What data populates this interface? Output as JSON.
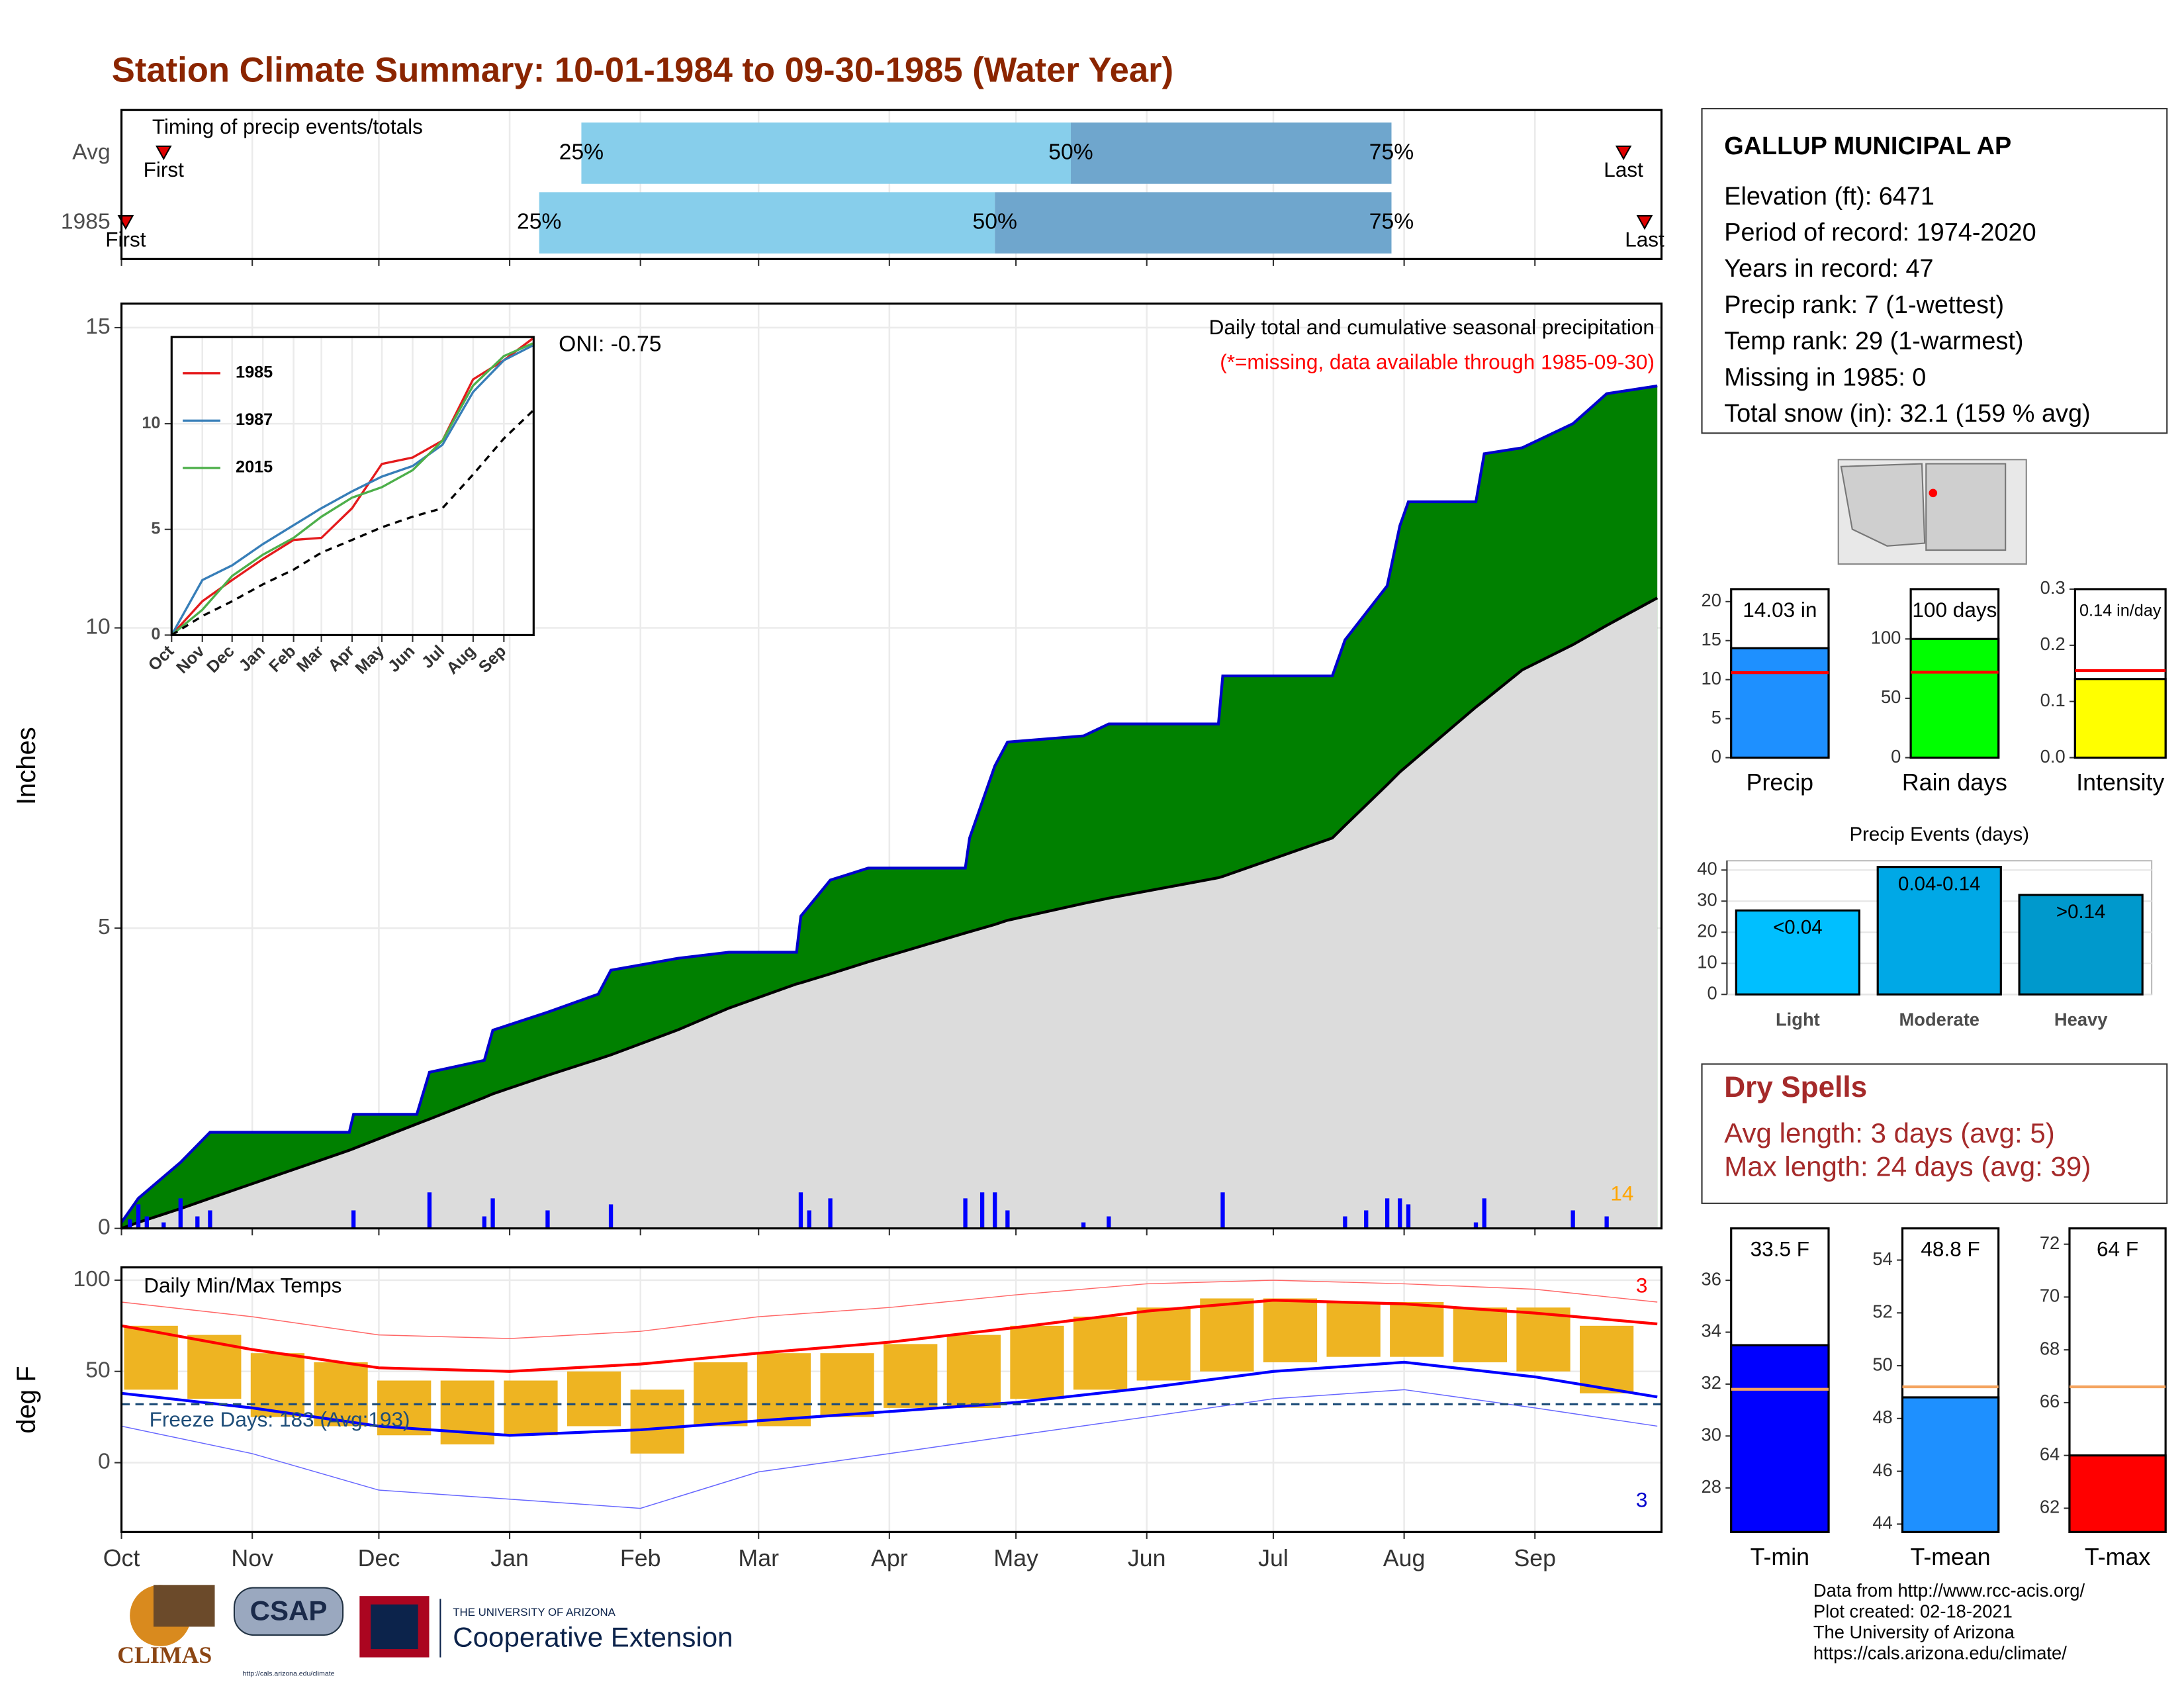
{
  "title": "Station Climate Summary: 10-01-1984 to 09-30-1985 (Water Year)",
  "station": {
    "name": "GALLUP MUNICIPAL AP",
    "lines": [
      "Elevation (ft): 6471",
      "Period of record: 1974-2020",
      "Years in record: 47",
      "Precip rank: 7 (1-wettest)",
      "Temp rank: 29 (1-warmest)",
      "Missing in 1985: 0",
      "Total snow (in): 32.1 (159 % avg)"
    ]
  },
  "dry_spells": {
    "title": "Dry Spells",
    "lines": [
      "Avg length: 3 days (avg: 5)",
      "Max length: 24 days (avg: 39)"
    ]
  },
  "footer": [
    "Data from http://www.rcc-acis.org/",
    "Plot created: 02-18-2021",
    "The University of Arizona",
    "https://cals.arizona.edu/climate/"
  ],
  "logos": {
    "climas": "CLIMAS",
    "csap": "CSAP",
    "csap_url": "http://cals.arizona.edu/climate",
    "university": "THE UNIVERSITY OF ARIZONA",
    "extension": "Cooperative Extension"
  },
  "chart_data": [
    {
      "type": "timing",
      "title": "Timing of precip events/totals",
      "xlim": [
        0,
        365
      ],
      "xticks": [
        0,
        31,
        61,
        92,
        123,
        151,
        182,
        212,
        243,
        273,
        304,
        335
      ],
      "grid": true,
      "quartile_labels": [
        "25%",
        "50%",
        "75%"
      ],
      "first_label": "First",
      "last_label": "Last",
      "colors": [
        "#87ceeb",
        "#6fa6cd"
      ],
      "rows": [
        {
          "name": "Avg",
          "first": 10,
          "last": 356,
          "quartiles": [
            109,
            225,
            301
          ]
        },
        {
          "name": "1985",
          "first": 1,
          "last": 361,
          "quartiles": [
            99,
            207,
            301
          ]
        }
      ]
    },
    {
      "type": "area",
      "subtitle": "Daily total and cumulative seasonal precipitation",
      "note": "(*=missing, data available through 1985-09-30)",
      "annotation": "ONI: -0.75",
      "count_label": "14",
      "y_label": "Inches",
      "xlim": [
        0,
        365
      ],
      "ylim": [
        0,
        15.4
      ],
      "xticks": [
        0,
        31,
        61,
        92,
        123,
        151,
        182,
        212,
        243,
        273,
        304,
        335
      ],
      "yticks": [
        0,
        5,
        10,
        15
      ],
      "grid": true,
      "x": [
        0,
        4,
        14,
        21,
        54,
        55,
        70,
        73,
        86,
        88,
        101,
        113,
        116,
        132,
        144,
        160,
        161,
        168,
        177,
        200,
        201,
        207,
        210,
        228,
        234,
        260,
        261,
        287,
        290,
        300,
        303,
        305,
        321,
        323,
        332,
        344,
        352,
        364
      ],
      "series": [
        {
          "color": "#008000",
          "line_color": "#0000cd",
          "values": [
            0.1,
            0.5,
            1.1,
            1.6,
            1.6,
            1.9,
            1.9,
            2.6,
            2.8,
            3.3,
            3.6,
            3.9,
            4.3,
            4.5,
            4.6,
            4.6,
            5.2,
            5.8,
            6.0,
            6.0,
            6.5,
            7.7,
            8.1,
            8.2,
            8.4,
            8.4,
            9.2,
            9.2,
            9.8,
            10.7,
            11.7,
            12.1,
            12.1,
            12.9,
            13.0,
            13.4,
            13.9,
            14.03
          ]
        },
        {
          "color": "#dcdcdc",
          "line_color": "#000000",
          "values": [
            0,
            0.1,
            0.33,
            0.5,
            1.3,
            1.33,
            1.74,
            1.82,
            2.18,
            2.24,
            2.55,
            2.82,
            2.89,
            3.31,
            3.67,
            4.07,
            4.09,
            4.24,
            4.44,
            4.92,
            4.94,
            5.06,
            5.13,
            5.41,
            5.5,
            5.84,
            5.86,
            6.5,
            6.71,
            7.39,
            7.6,
            7.72,
            8.68,
            8.79,
            9.3,
            9.72,
            10.04,
            10.5
          ]
        }
      ],
      "daily": {
        "color": "#0000ff",
        "x": [
          2,
          4,
          6,
          10,
          14,
          18,
          21,
          55,
          73,
          86,
          88,
          101,
          116,
          161,
          163,
          168,
          200,
          204,
          207,
          210,
          228,
          234,
          261,
          290,
          295,
          300,
          303,
          305,
          321,
          323,
          344,
          352
        ],
        "values": [
          0.15,
          0.4,
          0.2,
          0.1,
          0.5,
          0.2,
          0.3,
          0.3,
          0.6,
          0.2,
          0.5,
          0.3,
          0.4,
          0.6,
          0.3,
          0.5,
          0.5,
          0.6,
          0.6,
          0.3,
          0.1,
          0.2,
          0.6,
          0.2,
          0.3,
          0.5,
          0.5,
          0.4,
          0.1,
          0.5,
          0.3,
          0.2
        ]
      }
    },
    {
      "type": "line",
      "xlim": [
        0,
        365
      ],
      "ylim": [
        0,
        14.1
      ],
      "xticks": [
        {
          "value": 0,
          "label": "Oct"
        },
        {
          "value": 31,
          "label": "Nov"
        },
        {
          "value": 61,
          "label": "Dec"
        },
        {
          "value": 92,
          "label": "Jan"
        },
        {
          "value": 123,
          "label": "Feb"
        },
        {
          "value": 151,
          "label": "Mar"
        },
        {
          "value": 182,
          "label": "Apr"
        },
        {
          "value": 212,
          "label": "May"
        },
        {
          "value": 243,
          "label": "Jun"
        },
        {
          "value": 273,
          "label": "Jul"
        },
        {
          "value": 304,
          "label": "Aug"
        },
        {
          "value": 335,
          "label": "Sep"
        }
      ],
      "yticks": [
        0,
        5,
        10
      ],
      "grid": true,
      "x": [
        0,
        31,
        61,
        92,
        123,
        151,
        182,
        212,
        243,
        273,
        304,
        335,
        364
      ],
      "series": [
        {
          "name": "1985",
          "color": "#e41a1c",
          "values": [
            0,
            1.6,
            2.6,
            3.6,
            4.5,
            4.6,
            6.0,
            8.1,
            8.4,
            9.2,
            12.1,
            13.0,
            14.03
          ]
        },
        {
          "name": "1987",
          "color": "#377eb8",
          "values": [
            0,
            2.6,
            3.3,
            4.3,
            5.2,
            6.0,
            6.8,
            7.5,
            8.0,
            9.0,
            11.5,
            13.0,
            13.7
          ]
        },
        {
          "name": "2015",
          "color": "#4daf4a",
          "values": [
            0,
            1.2,
            2.8,
            3.8,
            4.6,
            5.6,
            6.5,
            7.0,
            7.8,
            9.2,
            11.8,
            13.2,
            13.8
          ]
        },
        {
          "color": "#000000",
          "dash": true,
          "values": [
            0,
            0.9,
            1.6,
            2.4,
            3.1,
            3.9,
            4.5,
            5.1,
            5.6,
            6.0,
            7.6,
            9.3,
            10.6
          ]
        }
      ]
    },
    {
      "type": "range",
      "title": "Daily Min/Max Temps",
      "freeze_label": "Freeze Days: 183 (Avg:193)",
      "high_count": "3",
      "low_count": "3",
      "y_label": "deg F",
      "xlim": [
        0,
        365
      ],
      "ylim": [
        -38,
        107
      ],
      "xticks": [
        {
          "value": 0,
          "label": "Oct"
        },
        {
          "value": 31,
          "label": "Nov"
        },
        {
          "value": 61,
          "label": "Dec"
        },
        {
          "value": 92,
          "label": "Jan"
        },
        {
          "value": 123,
          "label": "Feb"
        },
        {
          "value": 151,
          "label": "Mar"
        },
        {
          "value": 182,
          "label": "Apr"
        },
        {
          "value": 212,
          "label": "May"
        },
        {
          "value": 243,
          "label": "Jun"
        },
        {
          "value": 273,
          "label": "Jul"
        },
        {
          "value": 304,
          "label": "Aug"
        },
        {
          "value": 335,
          "label": "Sep"
        }
      ],
      "yticks": [
        0,
        50,
        100
      ],
      "grid": true,
      "freeze": 32,
      "bar_color": "#eeb422",
      "x": [
        7,
        22,
        37,
        52,
        67,
        82,
        97,
        112,
        127,
        142,
        157,
        172,
        187,
        202,
        217,
        232,
        247,
        262,
        277,
        292,
        307,
        322,
        337,
        352
      ],
      "low": [
        40,
        35,
        25,
        20,
        15,
        10,
        15,
        20,
        5,
        20,
        20,
        25,
        30,
        30,
        35,
        40,
        45,
        50,
        55,
        58,
        58,
        55,
        50,
        38
      ],
      "high": [
        75,
        70,
        60,
        55,
        45,
        45,
        45,
        50,
        40,
        55,
        60,
        60,
        65,
        70,
        75,
        80,
        85,
        90,
        90,
        88,
        88,
        85,
        85,
        75
      ],
      "lines": [
        {
          "color": "#ff0000",
          "width": 2,
          "x": [
            0,
            31,
            61,
            92,
            123,
            151,
            182,
            212,
            243,
            273,
            304,
            335,
            364
          ],
          "values": [
            75,
            62,
            52,
            50,
            54,
            60,
            66,
            74,
            83,
            89,
            87,
            82,
            76
          ]
        },
        {
          "color": "#0000ff",
          "width": 2,
          "x": [
            0,
            31,
            61,
            92,
            123,
            151,
            182,
            212,
            243,
            273,
            304,
            335,
            364
          ],
          "values": [
            38,
            30,
            20,
            15,
            18,
            23,
            28,
            33,
            41,
            50,
            55,
            47,
            36
          ]
        },
        {
          "color": "#ff6666",
          "width": 0.7,
          "x": [
            0,
            31,
            61,
            92,
            123,
            151,
            182,
            212,
            243,
            273,
            304,
            335,
            364
          ],
          "values": [
            88,
            80,
            70,
            68,
            72,
            80,
            85,
            92,
            98,
            100,
            98,
            95,
            88
          ]
        },
        {
          "color": "#6666ff",
          "width": 0.7,
          "x": [
            0,
            31,
            61,
            92,
            123,
            151,
            182,
            212,
            243,
            273,
            304,
            335,
            364
          ],
          "values": [
            20,
            5,
            -15,
            -20,
            -25,
            -5,
            5,
            15,
            25,
            35,
            40,
            30,
            20
          ]
        }
      ]
    },
    {
      "type": "bar",
      "categories": [
        "Precip"
      ],
      "values": [
        14.03
      ],
      "value_labels": [
        "14.03 in"
      ],
      "color": "#1e90ff",
      "average": 10.9,
      "avg_color": "#ff0000",
      "ylim": [
        0,
        21.6
      ],
      "yticks": [
        0,
        5,
        10,
        15,
        20
      ]
    },
    {
      "type": "bar",
      "categories": [
        "Rain days"
      ],
      "values": [
        100
      ],
      "value_labels": [
        "100 days"
      ],
      "color": "#00ff00",
      "average": 72,
      "avg_color": "#ff0000",
      "ylim": [
        0,
        142
      ],
      "yticks": [
        0,
        50,
        100
      ]
    },
    {
      "type": "bar",
      "categories": [
        "Intensity"
      ],
      "values": [
        0.14
      ],
      "value_labels": [
        "0.14 in/day"
      ],
      "color": "#ffff00",
      "average": 0.155,
      "avg_color": "#ff0000",
      "ylim": [
        0,
        0.3
      ],
      "yticks": [
        {
          "value": 0,
          "label": "0.0"
        },
        0.1,
        0.2,
        0.3
      ]
    },
    {
      "type": "bar",
      "title": "Precip Events (days)",
      "categories": [
        "Light",
        "Moderate",
        "Heavy"
      ],
      "values": [
        27,
        41,
        32
      ],
      "bin_labels": [
        "<0.04",
        "0.04-0.14",
        ">0.14"
      ],
      "colors": [
        "#00bfff",
        "#00a8e6",
        "#0099cc"
      ],
      "ylim": [
        0,
        43
      ],
      "yticks": [
        0,
        10,
        20,
        30,
        40
      ],
      "grid": true
    },
    {
      "type": "bar",
      "categories": [
        "T-min"
      ],
      "values": [
        33.5
      ],
      "value_labels": [
        "33.5 F"
      ],
      "color": "#0000ff",
      "average": 31.8,
      "avg_color": "#f4a460",
      "ylim": [
        26.3,
        38
      ],
      "yticks": [
        28,
        30,
        32,
        34,
        36
      ]
    },
    {
      "type": "bar",
      "categories": [
        "T-mean"
      ],
      "values": [
        48.8
      ],
      "value_labels": [
        "48.8 F"
      ],
      "color": "#1e90ff",
      "average": 49.2,
      "avg_color": "#f4a460",
      "ylim": [
        43.7,
        55.2
      ],
      "yticks": [
        44,
        46,
        48,
        50,
        52,
        54
      ]
    },
    {
      "type": "bar",
      "categories": [
        "T-max"
      ],
      "values": [
        64
      ],
      "value_labels": [
        "64 F"
      ],
      "color": "#ff0000",
      "average": 66.6,
      "avg_color": "#f4a460",
      "ylim": [
        61.1,
        72.6
      ],
      "yticks": [
        62,
        64,
        66,
        68,
        70,
        72
      ]
    }
  ]
}
